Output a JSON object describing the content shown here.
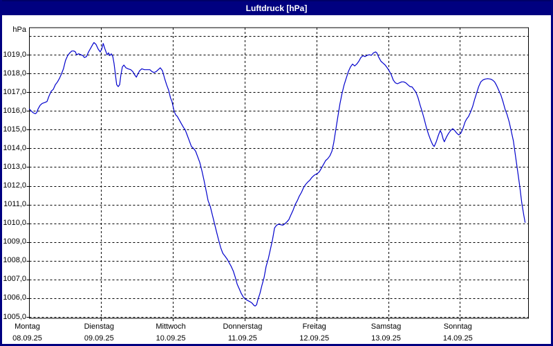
{
  "window": {
    "title": "Luftdruck [hPa]"
  },
  "colors": {
    "title_bar": "#000080",
    "title_text": "#ffffff",
    "page_border": "#000080",
    "plot_border": "#000000",
    "grid": "#000000",
    "line": "#0000cc",
    "background": "#ffffff"
  },
  "chart_data": {
    "type": "line",
    "title": "Luftdruck [hPa]",
    "ylabel": "hPa",
    "unit": "hPa",
    "ylim": [
      1005,
      1020
    ],
    "ytick_step": 1,
    "ytick_labels": [
      "1019,0",
      "1018,0",
      "1017,0",
      "1016,0",
      "1015,0",
      "1014,0",
      "1013,0",
      "1012,0",
      "1011,0",
      "1010,0",
      "1009,0",
      "1008,0",
      "1007,0",
      "1006,0",
      "1005,0"
    ],
    "grid": "dashed",
    "legend": "none",
    "days": [
      {
        "name": "Montag",
        "date": "08.09.25"
      },
      {
        "name": "Dienstag",
        "date": "09.09.25"
      },
      {
        "name": "Mittwoch",
        "date": "10.09.25"
      },
      {
        "name": "Donnerstag",
        "date": "11.09.25"
      },
      {
        "name": "Freitag",
        "date": "12.09.25"
      },
      {
        "name": "Samstag",
        "date": "13.09.25"
      },
      {
        "name": "Sonntag",
        "date": "14.09.25"
      }
    ],
    "x_range_days": 7,
    "series": [
      {
        "name": "Luftdruck",
        "unit": "hPa",
        "color": "#0000cc",
        "points_hours_hpa": [
          [
            0,
            1016.1
          ],
          [
            0.6,
            1016.0
          ],
          [
            1.3,
            1015.9
          ],
          [
            2.0,
            1015.85
          ],
          [
            2.4,
            1015.9
          ],
          [
            2.9,
            1016.1
          ],
          [
            3.6,
            1016.3
          ],
          [
            4.3,
            1016.4
          ],
          [
            5.2,
            1016.45
          ],
          [
            5.9,
            1016.5
          ],
          [
            6.6,
            1016.8
          ],
          [
            7.3,
            1017.05
          ],
          [
            8.0,
            1017.15
          ],
          [
            8.7,
            1017.4
          ],
          [
            9.4,
            1017.55
          ],
          [
            10.1,
            1017.75
          ],
          [
            10.8,
            1018.0
          ],
          [
            11.4,
            1018.25
          ],
          [
            12.1,
            1018.7
          ],
          [
            12.8,
            1018.95
          ],
          [
            13.5,
            1019.1
          ],
          [
            14.2,
            1019.2
          ],
          [
            14.9,
            1019.2
          ],
          [
            15.4,
            1019.15
          ],
          [
            15.8,
            1019.0
          ],
          [
            16.5,
            1019.05
          ],
          [
            17.2,
            1019.0
          ],
          [
            17.9,
            1018.95
          ],
          [
            18.4,
            1018.85
          ],
          [
            19.1,
            1018.9
          ],
          [
            19.8,
            1019.15
          ],
          [
            20.5,
            1019.35
          ],
          [
            21.2,
            1019.55
          ],
          [
            21.6,
            1019.65
          ],
          [
            22.3,
            1019.55
          ],
          [
            23.0,
            1019.3
          ],
          [
            23.7,
            1019.15
          ],
          [
            24.2,
            1019.3
          ],
          [
            24.7,
            1019.6
          ],
          [
            25.3,
            1019.3
          ],
          [
            26.0,
            1019.0
          ],
          [
            26.5,
            1019.1
          ],
          [
            26.9,
            1018.95
          ],
          [
            27.4,
            1019.05
          ],
          [
            27.9,
            1018.9
          ],
          [
            28.3,
            1018.55
          ],
          [
            28.8,
            1017.9
          ],
          [
            29.2,
            1017.4
          ],
          [
            29.7,
            1017.3
          ],
          [
            30.2,
            1017.4
          ],
          [
            30.6,
            1017.9
          ],
          [
            31.1,
            1018.35
          ],
          [
            31.6,
            1018.45
          ],
          [
            32.3,
            1018.3
          ],
          [
            33.0,
            1018.25
          ],
          [
            33.9,
            1018.2
          ],
          [
            34.6,
            1018.1
          ],
          [
            35.3,
            1017.9
          ],
          [
            35.8,
            1017.8
          ],
          [
            36.2,
            1017.95
          ],
          [
            36.9,
            1018.15
          ],
          [
            37.6,
            1018.25
          ],
          [
            38.5,
            1018.2
          ],
          [
            39.4,
            1018.2
          ],
          [
            40.3,
            1018.2
          ],
          [
            41.0,
            1018.1
          ],
          [
            41.7,
            1018.05
          ],
          [
            42.4,
            1018.1
          ],
          [
            43.1,
            1018.2
          ],
          [
            43.8,
            1018.3
          ],
          [
            44.5,
            1018.15
          ],
          [
            45.2,
            1017.75
          ],
          [
            45.9,
            1017.4
          ],
          [
            46.6,
            1017.1
          ],
          [
            47.2,
            1016.7
          ],
          [
            47.7,
            1016.5
          ],
          [
            48.4,
            1016.0
          ],
          [
            48.9,
            1015.8
          ],
          [
            49.5,
            1015.7
          ],
          [
            50.2,
            1015.5
          ],
          [
            50.9,
            1015.3
          ],
          [
            51.6,
            1015.1
          ],
          [
            52.1,
            1015.0
          ],
          [
            52.8,
            1014.7
          ],
          [
            53.5,
            1014.4
          ],
          [
            54.2,
            1014.1
          ],
          [
            54.9,
            1014.0
          ],
          [
            55.6,
            1013.85
          ],
          [
            56.3,
            1013.55
          ],
          [
            57.0,
            1013.25
          ],
          [
            57.7,
            1012.8
          ],
          [
            58.4,
            1012.3
          ],
          [
            59.1,
            1011.75
          ],
          [
            59.8,
            1011.2
          ],
          [
            60.5,
            1010.9
          ],
          [
            61.2,
            1010.45
          ],
          [
            61.9,
            1010.0
          ],
          [
            62.6,
            1009.55
          ],
          [
            63.3,
            1009.1
          ],
          [
            64.0,
            1008.7
          ],
          [
            64.7,
            1008.4
          ],
          [
            65.4,
            1008.25
          ],
          [
            66.1,
            1008.1
          ],
          [
            66.8,
            1007.9
          ],
          [
            67.5,
            1007.7
          ],
          [
            68.2,
            1007.45
          ],
          [
            68.9,
            1007.1
          ],
          [
            69.5,
            1006.75
          ],
          [
            70.2,
            1006.5
          ],
          [
            70.9,
            1006.25
          ],
          [
            71.6,
            1006.05
          ],
          [
            72.3,
            1005.95
          ],
          [
            73.0,
            1005.88
          ],
          [
            73.7,
            1005.82
          ],
          [
            74.4,
            1005.75
          ],
          [
            75.1,
            1005.62
          ],
          [
            75.5,
            1005.58
          ],
          [
            76.0,
            1005.65
          ],
          [
            76.4,
            1005.9
          ],
          [
            77.1,
            1006.25
          ],
          [
            77.8,
            1006.7
          ],
          [
            78.5,
            1007.1
          ],
          [
            79.2,
            1007.7
          ],
          [
            79.9,
            1008.1
          ],
          [
            80.6,
            1008.6
          ],
          [
            81.3,
            1009.1
          ],
          [
            82.0,
            1009.75
          ],
          [
            82.7,
            1009.9
          ],
          [
            83.4,
            1009.95
          ],
          [
            84.1,
            1009.92
          ],
          [
            84.8,
            1009.9
          ],
          [
            85.4,
            1009.97
          ],
          [
            86.1,
            1010.07
          ],
          [
            86.8,
            1010.2
          ],
          [
            87.5,
            1010.45
          ],
          [
            88.2,
            1010.7
          ],
          [
            88.9,
            1011.0
          ],
          [
            89.6,
            1011.2
          ],
          [
            90.3,
            1011.45
          ],
          [
            91.0,
            1011.65
          ],
          [
            91.7,
            1011.9
          ],
          [
            92.4,
            1012.07
          ],
          [
            93.1,
            1012.2
          ],
          [
            93.8,
            1012.3
          ],
          [
            94.5,
            1012.45
          ],
          [
            95.2,
            1012.55
          ],
          [
            95.6,
            1012.6
          ],
          [
            96.3,
            1012.65
          ],
          [
            97.0,
            1012.75
          ],
          [
            97.7,
            1012.95
          ],
          [
            98.4,
            1013.15
          ],
          [
            99.1,
            1013.35
          ],
          [
            99.8,
            1013.45
          ],
          [
            100.5,
            1013.6
          ],
          [
            101.2,
            1013.85
          ],
          [
            101.8,
            1014.3
          ],
          [
            102.5,
            1015.0
          ],
          [
            103.2,
            1015.7
          ],
          [
            103.9,
            1016.4
          ],
          [
            104.6,
            1016.95
          ],
          [
            105.3,
            1017.4
          ],
          [
            106.0,
            1017.75
          ],
          [
            106.7,
            1018.1
          ],
          [
            107.4,
            1018.35
          ],
          [
            108.1,
            1018.5
          ],
          [
            108.8,
            1018.4
          ],
          [
            109.5,
            1018.5
          ],
          [
            110.2,
            1018.65
          ],
          [
            110.9,
            1018.85
          ],
          [
            111.6,
            1018.95
          ],
          [
            112.3,
            1018.9
          ],
          [
            113.0,
            1018.97
          ],
          [
            113.7,
            1019.0
          ],
          [
            114.4,
            1018.97
          ],
          [
            115.1,
            1019.1
          ],
          [
            115.8,
            1019.15
          ],
          [
            116.2,
            1019.1
          ],
          [
            116.9,
            1018.85
          ],
          [
            117.6,
            1018.65
          ],
          [
            118.3,
            1018.55
          ],
          [
            119.0,
            1018.45
          ],
          [
            119.7,
            1018.3
          ],
          [
            120.3,
            1018.15
          ],
          [
            121.0,
            1017.95
          ],
          [
            121.7,
            1017.65
          ],
          [
            122.4,
            1017.5
          ],
          [
            123.1,
            1017.45
          ],
          [
            123.8,
            1017.5
          ],
          [
            124.5,
            1017.55
          ],
          [
            125.2,
            1017.55
          ],
          [
            125.9,
            1017.5
          ],
          [
            126.6,
            1017.4
          ],
          [
            127.3,
            1017.3
          ],
          [
            128.0,
            1017.28
          ],
          [
            128.6,
            1017.15
          ],
          [
            129.3,
            1017.0
          ],
          [
            130.0,
            1016.7
          ],
          [
            130.7,
            1016.3
          ],
          [
            131.4,
            1015.95
          ],
          [
            132.1,
            1015.55
          ],
          [
            132.8,
            1015.1
          ],
          [
            133.5,
            1014.75
          ],
          [
            134.2,
            1014.45
          ],
          [
            134.9,
            1014.2
          ],
          [
            135.4,
            1014.1
          ],
          [
            136.1,
            1014.35
          ],
          [
            136.8,
            1014.7
          ],
          [
            137.4,
            1014.95
          ],
          [
            137.9,
            1014.8
          ],
          [
            138.4,
            1014.5
          ],
          [
            138.8,
            1014.35
          ],
          [
            139.5,
            1014.6
          ],
          [
            140.2,
            1014.8
          ],
          [
            140.9,
            1014.95
          ],
          [
            141.6,
            1015.05
          ],
          [
            142.3,
            1014.95
          ],
          [
            143.0,
            1014.8
          ],
          [
            143.6,
            1014.72
          ],
          [
            144.3,
            1014.8
          ],
          [
            145.0,
            1015.05
          ],
          [
            145.7,
            1015.4
          ],
          [
            146.2,
            1015.55
          ],
          [
            146.9,
            1015.7
          ],
          [
            147.6,
            1015.95
          ],
          [
            148.3,
            1016.25
          ],
          [
            148.9,
            1016.6
          ],
          [
            149.6,
            1016.95
          ],
          [
            150.3,
            1017.3
          ],
          [
            151.0,
            1017.55
          ],
          [
            151.7,
            1017.65
          ],
          [
            152.4,
            1017.7
          ],
          [
            153.3,
            1017.72
          ],
          [
            154.3,
            1017.7
          ],
          [
            154.9,
            1017.65
          ],
          [
            155.6,
            1017.55
          ],
          [
            156.3,
            1017.35
          ],
          [
            157.0,
            1017.1
          ],
          [
            157.7,
            1016.85
          ],
          [
            158.4,
            1016.5
          ],
          [
            159.1,
            1016.1
          ],
          [
            159.8,
            1015.8
          ],
          [
            160.5,
            1015.4
          ],
          [
            161.2,
            1014.9
          ],
          [
            161.9,
            1014.4
          ],
          [
            162.6,
            1013.6
          ],
          [
            163.3,
            1012.8
          ],
          [
            164.0,
            1012.0
          ],
          [
            164.7,
            1011.1
          ],
          [
            165.4,
            1010.4
          ],
          [
            165.8,
            1010.05
          ]
        ]
      }
    ]
  }
}
